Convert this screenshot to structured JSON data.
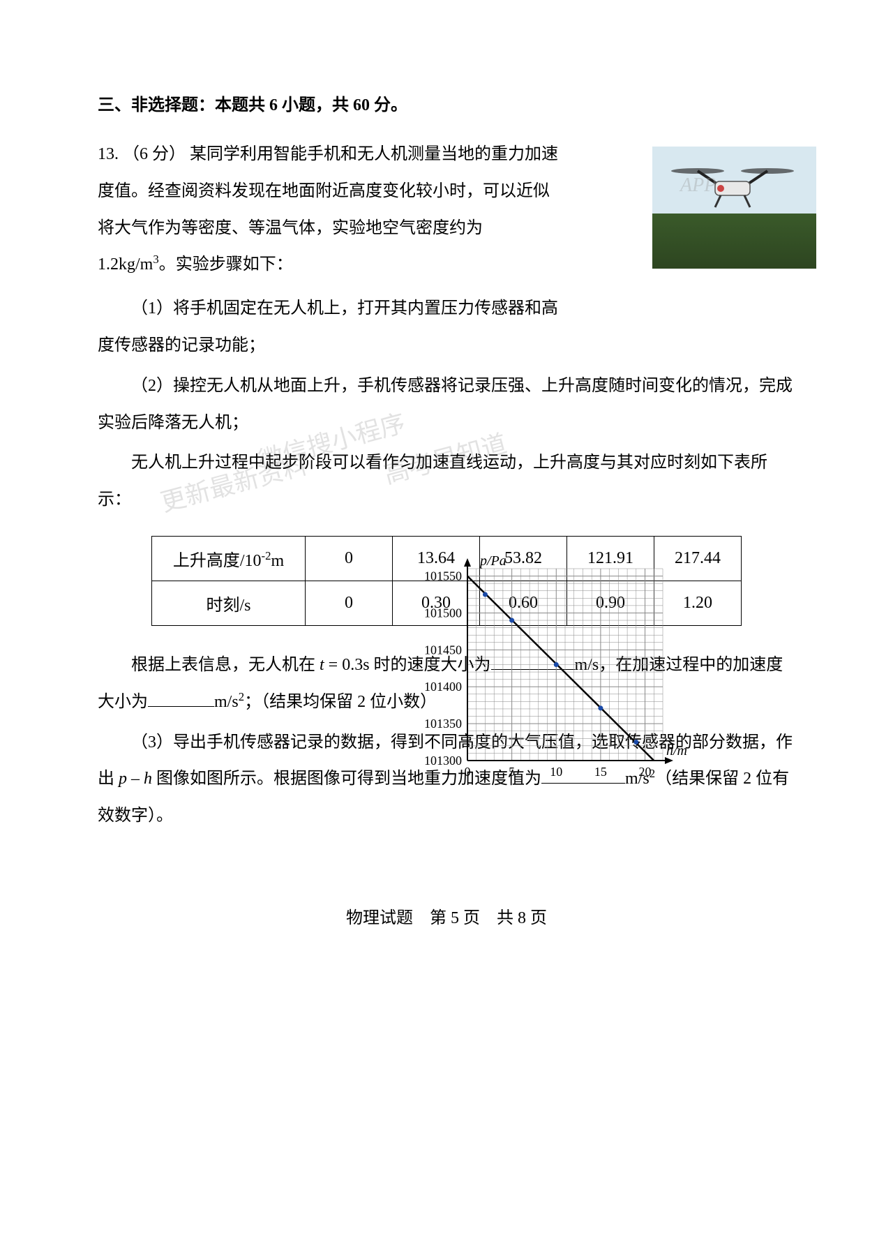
{
  "section": {
    "header": "三、非选择题：本题共 6 小题，共 60 分。"
  },
  "q13": {
    "num": "13.",
    "points": "（6 分）",
    "intro1": "某同学利用智能手机和无人机测量当地的重力加速度值。经查阅资料发现在地面附近高度变化较小时，可以近似将大气作为等密度、等温气体，实验地空气密度约为 1.2kg/m",
    "intro1_sup": "3",
    "intro1_end": "。实验步骤如下：",
    "step1": "（1）将手机固定在无人机上，打开其内置压力传感器和高度传感器的记录功能；",
    "step2": "（2）操控无人机从地面上升，手机传感器将记录压强、上升高度随时间变化的情况，完成实验后降落无人机；",
    "step2b": "无人机上升过程中起步阶段可以看作匀加速直线运动，上升高度与其对应时刻如下表所示：",
    "after_table_a": "根据上表信息，无人机在 ",
    "after_table_t": "t",
    "after_table_b": " = 0.3s 时的速度大小为",
    "unit_ms": "m/s",
    "after_table_c": "，在加速过程中的加速度大小为",
    "unit_ms2": "m/s",
    "sup2": "2",
    "after_table_d": "；（结果均保留 2 位小数）",
    "step3a": "（3）导出手机传感器记录的数据，得到不同高度的大气压值，选取传感器的部分数据，作出 ",
    "step3_p": "p",
    "step3_dash": " – ",
    "step3_h": "h",
    "step3b": " 图像如图所示。根据图像可得到当地重力加速度值为",
    "step3c": "m/s",
    "step3d": "（结果保留 2 位有效数字）。"
  },
  "table": {
    "row1_label": "上升高度/10",
    "row1_sup": "-2",
    "row1_unit": "m",
    "row1": [
      "0",
      "13.64",
      "53.82",
      "121.91",
      "217.44"
    ],
    "row2_label": "时刻/s",
    "row2": [
      "0",
      "0.30",
      "0.60",
      "0.90",
      "1.20"
    ]
  },
  "chart": {
    "y_label": "p/Pa",
    "x_label": "h/m",
    "y_ticks": [
      "101300",
      "101350",
      "101400",
      "101450",
      "101500",
      "101550"
    ],
    "x_ticks": [
      "0",
      "5",
      "10",
      "15",
      "20"
    ],
    "x_min": 0,
    "x_max": 22,
    "y_min": 101300,
    "y_max": 101560,
    "grid_color": "#888888",
    "axis_color": "#000000",
    "line_color": "#000000",
    "marker_color": "#1a4aa8",
    "bg_color": "#ffffff",
    "font_size": 18,
    "line_data": [
      {
        "x": 0,
        "y": 101550
      },
      {
        "x": 21,
        "y": 101300
      }
    ],
    "markers": [
      {
        "x": 2,
        "y": 101525
      },
      {
        "x": 5,
        "y": 101490
      },
      {
        "x": 10,
        "y": 101430
      },
      {
        "x": 15,
        "y": 101371
      },
      {
        "x": 19,
        "y": 101325
      }
    ]
  },
  "footer": {
    "text": "物理试题　第 5 页　共 8 页"
  },
  "watermarks": {
    "a": "微信搜小程序",
    "b": "高考早知道",
    "c": "更新最新资料"
  }
}
